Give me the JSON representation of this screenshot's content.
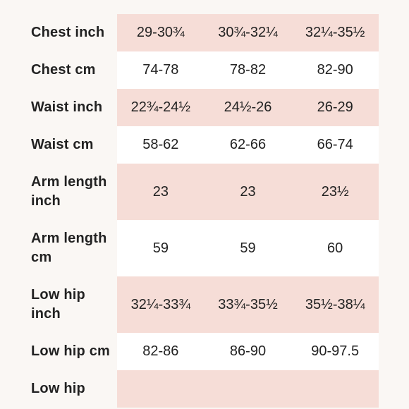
{
  "table": {
    "rows": [
      {
        "label": "Chest inch",
        "values": [
          "29-30¾",
          "30¾-32¼",
          "32¼-35½"
        ]
      },
      {
        "label": "Chest cm",
        "values": [
          "74-78",
          "78-82",
          "82-90"
        ]
      },
      {
        "label": "Waist inch",
        "values": [
          "22¾-24½",
          "24½-26",
          "26-29"
        ]
      },
      {
        "label": "Waist cm",
        "values": [
          "58-62",
          "62-66",
          "66-74"
        ]
      },
      {
        "label": "Arm length inch",
        "values": [
          "23",
          "23",
          "23½"
        ]
      },
      {
        "label": "Arm length cm",
        "values": [
          "59",
          "59",
          "60"
        ]
      },
      {
        "label": "Low hip inch",
        "values": [
          "32¼-33¾",
          "33¾-35½",
          "35½-38¼"
        ]
      },
      {
        "label": "Low hip cm",
        "values": [
          "82-86",
          "86-90",
          "90-97.5"
        ]
      },
      {
        "label": "Low hip"
      }
    ]
  }
}
